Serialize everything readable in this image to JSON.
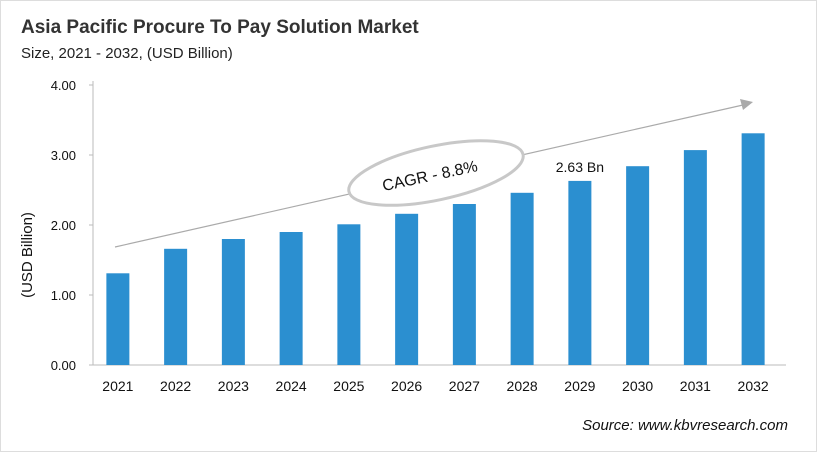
{
  "chart_data": {
    "type": "bar",
    "title": "Asia Pacific Procure To Pay Solution Market",
    "subtitle": "Size, 2021 - 2032, (USD Billion)",
    "ylabel": "(USD Billion)",
    "xlabel": "",
    "categories": [
      "2021",
      "2022",
      "2023",
      "2024",
      "2025",
      "2026",
      "2027",
      "2028",
      "2029",
      "2030",
      "2031",
      "2032"
    ],
    "values": [
      1.31,
      1.66,
      1.8,
      1.9,
      2.01,
      2.16,
      2.3,
      2.46,
      2.63,
      2.84,
      3.07,
      3.31
    ],
    "ylim": [
      0,
      4
    ],
    "yticks": [
      "0.00",
      "1.00",
      "2.00",
      "3.00",
      "4.00"
    ],
    "grid": false,
    "bar_color": "#2b8fd0",
    "annotations": {
      "cagr": "CAGR - 8.8%",
      "data_label": "2.63 Bn",
      "data_label_category": "2029"
    },
    "source": "Source: www.kbvresearch.com"
  }
}
